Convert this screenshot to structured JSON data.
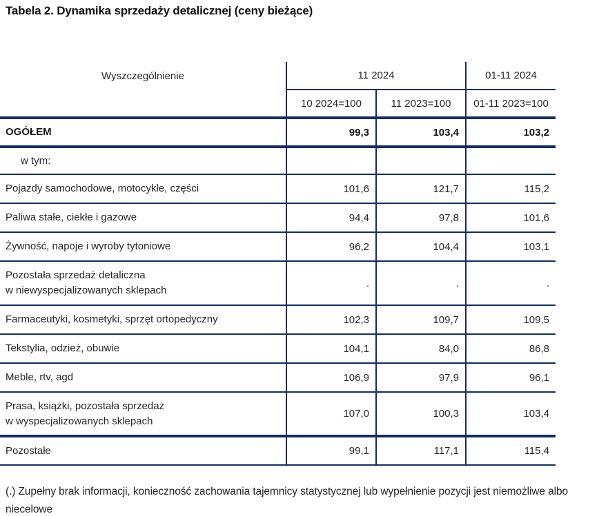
{
  "title": "Tabela 2. Dynamika sprzedaży detalicznej (ceny bieżące)",
  "colors": {
    "rule_navy": "#122c63",
    "text_dark": "#26262c"
  },
  "table": {
    "header": {
      "specification": "Wyszczególnienie",
      "group_month": "11 2024",
      "group_cumulative": "01-11 2024",
      "sub_prev_month": "10 2024=100",
      "sub_prev_year_month": "11 2023=100",
      "sub_prev_year_cumulative": "01-11 2023=100"
    },
    "rows": [
      {
        "label": "OGÓŁEM",
        "v1": "99,3",
        "v2": "103,4",
        "v3": "103,2"
      },
      {
        "label": "w tym:",
        "v1": "",
        "v2": "",
        "v3": ""
      },
      {
        "label": "Pojazdy samochodowe, motocykle, części",
        "v1": "101,6",
        "v2": "121,7",
        "v3": "115,2"
      },
      {
        "label": "Paliwa stałe, ciekłe i gazowe",
        "v1": "94,4",
        "v2": "97,8",
        "v3": "101,6"
      },
      {
        "label": "Żywność, napoje i wyroby tytoniowe",
        "v1": "96,2",
        "v2": "104,4",
        "v3": "103,1"
      },
      {
        "label": "Pozostała sprzedaż detaliczna\nw niewyspecjalizowanych sklepach",
        "v1": ".",
        "v2": ".",
        "v3": "."
      },
      {
        "label": "Farmaceutyki, kosmetyki, sprzęt ortopedyczny",
        "v1": "102,3",
        "v2": "109,7",
        "v3": "109,5"
      },
      {
        "label": "Tekstylia, odzież, obuwie",
        "v1": "104,1",
        "v2": "84,0",
        "v3": "86,8"
      },
      {
        "label": "Meble, rtv, agd",
        "v1": "106,9",
        "v2": "97,9",
        "v3": "96,1"
      },
      {
        "label": "Prasa, książki, pozostała sprzedaż\n w wyspecjalizowanych sklepach",
        "v1": "107,0",
        "v2": "100,3",
        "v3": "103,4"
      },
      {
        "label": "Pozostałe",
        "v1": "99,1",
        "v2": "117,1",
        "v3": "115,4"
      }
    ]
  },
  "footnote": "(.) Zupełny brak informacji, konieczność zachowania tajemnicy statystycznej lub wypełnienie pozycji jest niemożliwe albo niecelowe"
}
